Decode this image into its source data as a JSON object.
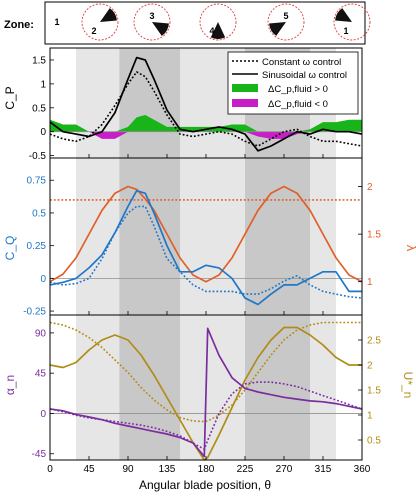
{
  "zone_strip": {
    "label": "Zone:",
    "zones": [
      "1",
      "2",
      "3",
      "4",
      "5",
      "1"
    ]
  },
  "colors": {
    "black": "#000000",
    "fluid_pos": "#19b419",
    "fluid_neg": "#c81ec8",
    "cq": "#1f77c8",
    "lambda": "#e0602a",
    "alpha": "#7b2d9e",
    "urel": "#b08c17",
    "shade_light": "#e6e6e6",
    "shade_dark": "#c8c8c8",
    "zero_line": "#909090",
    "zone_circle": "#e23b3b"
  },
  "chart_data": [
    {
      "type": "line",
      "panel": "top",
      "ylabel": "C_P",
      "ylim": [
        -0.55,
        1.75
      ],
      "yticks": [
        -0.5,
        0,
        0.5,
        1,
        1.5
      ],
      "ytick_labels": [
        "-0.5",
        "0",
        "0.5",
        "1",
        "1.5"
      ],
      "legend": {
        "position": "top-right",
        "entries": [
          {
            "label": "Constant ω control",
            "style": "dotted"
          },
          {
            "label": "Sinusoidal ω control",
            "style": "solid"
          },
          {
            "label": "ΔC_p,fluid > 0",
            "style": "fill-green"
          },
          {
            "label": "ΔC_p,fluid < 0",
            "style": "fill-magenta"
          }
        ]
      },
      "x": [
        0,
        15,
        30,
        45,
        60,
        75,
        90,
        100,
        110,
        120,
        135,
        150,
        165,
        180,
        195,
        210,
        225,
        240,
        255,
        270,
        285,
        300,
        315,
        330,
        345,
        360
      ],
      "series": [
        {
          "name": "Constant ω control",
          "style": "dotted",
          "values": [
            -0.05,
            -0.15,
            -0.2,
            -0.1,
            0.15,
            0.55,
            1.0,
            1.25,
            1.15,
            0.85,
            0.35,
            -0.05,
            -0.1,
            -0.05,
            0.0,
            -0.05,
            -0.2,
            -0.3,
            -0.15,
            0.0,
            0.05,
            -0.1,
            -0.2,
            -0.2,
            -0.25,
            -0.3
          ]
        },
        {
          "name": "Sinusoidal ω control",
          "style": "solid",
          "values": [
            0.2,
            0.0,
            -0.05,
            -0.1,
            0.0,
            0.4,
            1.1,
            1.55,
            1.5,
            1.1,
            0.45,
            0.05,
            0.0,
            0.05,
            0.1,
            0.05,
            -0.05,
            -0.4,
            -0.3,
            -0.15,
            0.0,
            -0.05,
            0.05,
            0.0,
            0.0,
            -0.05
          ]
        },
        {
          "name": "ΔC_p,fluid",
          "style": "fill",
          "values": [
            0.25,
            0.15,
            0.15,
            0.0,
            -0.15,
            -0.15,
            0.1,
            0.3,
            0.35,
            0.25,
            0.1,
            0.1,
            0.1,
            0.1,
            0.1,
            0.15,
            0.15,
            -0.1,
            -0.15,
            -0.15,
            -0.05,
            0.05,
            0.2,
            0.2,
            0.25,
            0.25
          ]
        }
      ]
    },
    {
      "type": "line",
      "panel": "middle",
      "ylabel": "C_Q",
      "ylabel_right": "λ",
      "ylim": [
        -0.28,
        0.92
      ],
      "yticks": [
        -0.25,
        0,
        0.25,
        0.5,
        0.75
      ],
      "ytick_labels": [
        "-0.25",
        "0",
        "0.25",
        "0.5",
        "0.75"
      ],
      "ylim_right": [
        0.65,
        2.3
      ],
      "yticks_right": [
        1,
        1.5,
        2
      ],
      "ytick_labels_right": [
        "1",
        "1.5",
        "2"
      ],
      "x": [
        0,
        15,
        30,
        45,
        60,
        75,
        90,
        100,
        110,
        120,
        135,
        150,
        165,
        180,
        195,
        210,
        225,
        240,
        255,
        270,
        285,
        300,
        315,
        330,
        345,
        360
      ],
      "series": [
        {
          "name": "C_Q constant ω",
          "axis": "left",
          "style": "dotted",
          "values": [
            -0.03,
            -0.05,
            -0.04,
            0.0,
            0.15,
            0.35,
            0.5,
            0.55,
            0.55,
            0.4,
            0.15,
            0.05,
            -0.05,
            -0.1,
            -0.1,
            -0.1,
            -0.12,
            -0.12,
            -0.08,
            -0.02,
            0.02,
            -0.05,
            -0.1,
            -0.12,
            -0.14,
            -0.15
          ]
        },
        {
          "name": "C_Q sinusoidal ω",
          "axis": "left",
          "style": "solid",
          "values": [
            -0.05,
            -0.03,
            0.0,
            0.08,
            0.18,
            0.35,
            0.55,
            0.67,
            0.65,
            0.5,
            0.25,
            0.05,
            0.05,
            0.1,
            0.08,
            0.0,
            -0.15,
            -0.2,
            -0.12,
            -0.05,
            -0.05,
            0.0,
            0.05,
            0.05,
            -0.1,
            -0.1
          ]
        },
        {
          "name": "λ sinusoidal",
          "axis": "right",
          "style": "solid",
          "values": [
            1.0,
            1.08,
            1.25,
            1.5,
            1.75,
            1.93,
            2.0,
            1.97,
            1.87,
            1.75,
            1.5,
            1.25,
            1.07,
            1.0,
            1.07,
            1.25,
            1.5,
            1.75,
            1.93,
            2.0,
            1.93,
            1.75,
            1.5,
            1.25,
            1.07,
            1.0
          ]
        },
        {
          "name": "λ constant",
          "axis": "right",
          "style": "dotted",
          "values": [
            1.86,
            1.86,
            1.86,
            1.86,
            1.86,
            1.86,
            1.86,
            1.86,
            1.86,
            1.86,
            1.86,
            1.86,
            1.86,
            1.86,
            1.86,
            1.86,
            1.86,
            1.86,
            1.86,
            1.86,
            1.86,
            1.86,
            1.86,
            1.86,
            1.86,
            1.86
          ]
        }
      ]
    },
    {
      "type": "line",
      "panel": "bottom",
      "ylabel": "α_n",
      "ylabel_right": "U*_n",
      "xlabel": "Angular blade position, θ",
      "xlim": [
        0,
        360
      ],
      "xticks": [
        0,
        45,
        90,
        135,
        180,
        225,
        270,
        315,
        360
      ],
      "xtick_labels": [
        "0",
        "45",
        "90",
        "135",
        "180",
        "225",
        "270",
        "315",
        "360"
      ],
      "ylim": [
        -52,
        110
      ],
      "yticks": [
        -45,
        0,
        45,
        90
      ],
      "ytick_labels": [
        "-45",
        "0",
        "45",
        "90"
      ],
      "ylim_right": [
        0.1,
        3.0
      ],
      "yticks_right": [
        0.5,
        1,
        1.5,
        2,
        2.5
      ],
      "ytick_labels_right": [
        "0.5",
        "1",
        "1.5",
        "2",
        "2.5"
      ],
      "x": [
        0,
        15,
        30,
        45,
        60,
        75,
        90,
        105,
        120,
        135,
        150,
        165,
        178,
        182,
        195,
        210,
        225,
        240,
        255,
        270,
        285,
        300,
        315,
        330,
        345,
        360
      ],
      "series": [
        {
          "name": "α_n sinusoidal",
          "axis": "left",
          "style": "solid",
          "values": [
            5,
            3,
            -1,
            -4,
            -7,
            -11,
            -14,
            -17,
            -20,
            -23,
            -27,
            -33,
            -48,
            95,
            65,
            40,
            28,
            24,
            21,
            18,
            16,
            14,
            13,
            11,
            8,
            5
          ]
        },
        {
          "name": "α_n constant",
          "axis": "left",
          "style": "dotted",
          "values": [
            5,
            2,
            -2,
            -5,
            -7,
            -9,
            -11,
            -13,
            -16,
            -20,
            -25,
            -33,
            -40,
            -30,
            0,
            22,
            33,
            35,
            35,
            33,
            30,
            25,
            20,
            15,
            10,
            5
          ]
        },
        {
          "name": "U*_n sinusoidal",
          "axis": "right",
          "style": "solid",
          "values": [
            2.0,
            1.95,
            2.05,
            2.3,
            2.5,
            2.6,
            2.5,
            2.2,
            1.8,
            1.35,
            0.9,
            0.45,
            0.1,
            0.15,
            0.6,
            1.15,
            1.7,
            2.15,
            2.5,
            2.75,
            2.75,
            2.6,
            2.4,
            2.15,
            2.0,
            2.0
          ]
        },
        {
          "name": "U*_n constant",
          "axis": "right",
          "style": "dotted",
          "values": [
            2.85,
            2.8,
            2.7,
            2.55,
            2.35,
            2.1,
            1.85,
            1.55,
            1.3,
            1.1,
            0.95,
            0.88,
            0.87,
            0.88,
            1.0,
            1.2,
            1.5,
            1.85,
            2.2,
            2.5,
            2.7,
            2.8,
            2.85,
            2.85,
            2.85,
            2.85
          ]
        }
      ]
    }
  ],
  "zone_shading": [
    {
      "start": 30,
      "end": 80,
      "tone": "light"
    },
    {
      "start": 80,
      "end": 150,
      "tone": "dark"
    },
    {
      "start": 150,
      "end": 225,
      "tone": "light"
    },
    {
      "start": 225,
      "end": 300,
      "tone": "dark"
    },
    {
      "start": 300,
      "end": 330,
      "tone": "light"
    }
  ]
}
